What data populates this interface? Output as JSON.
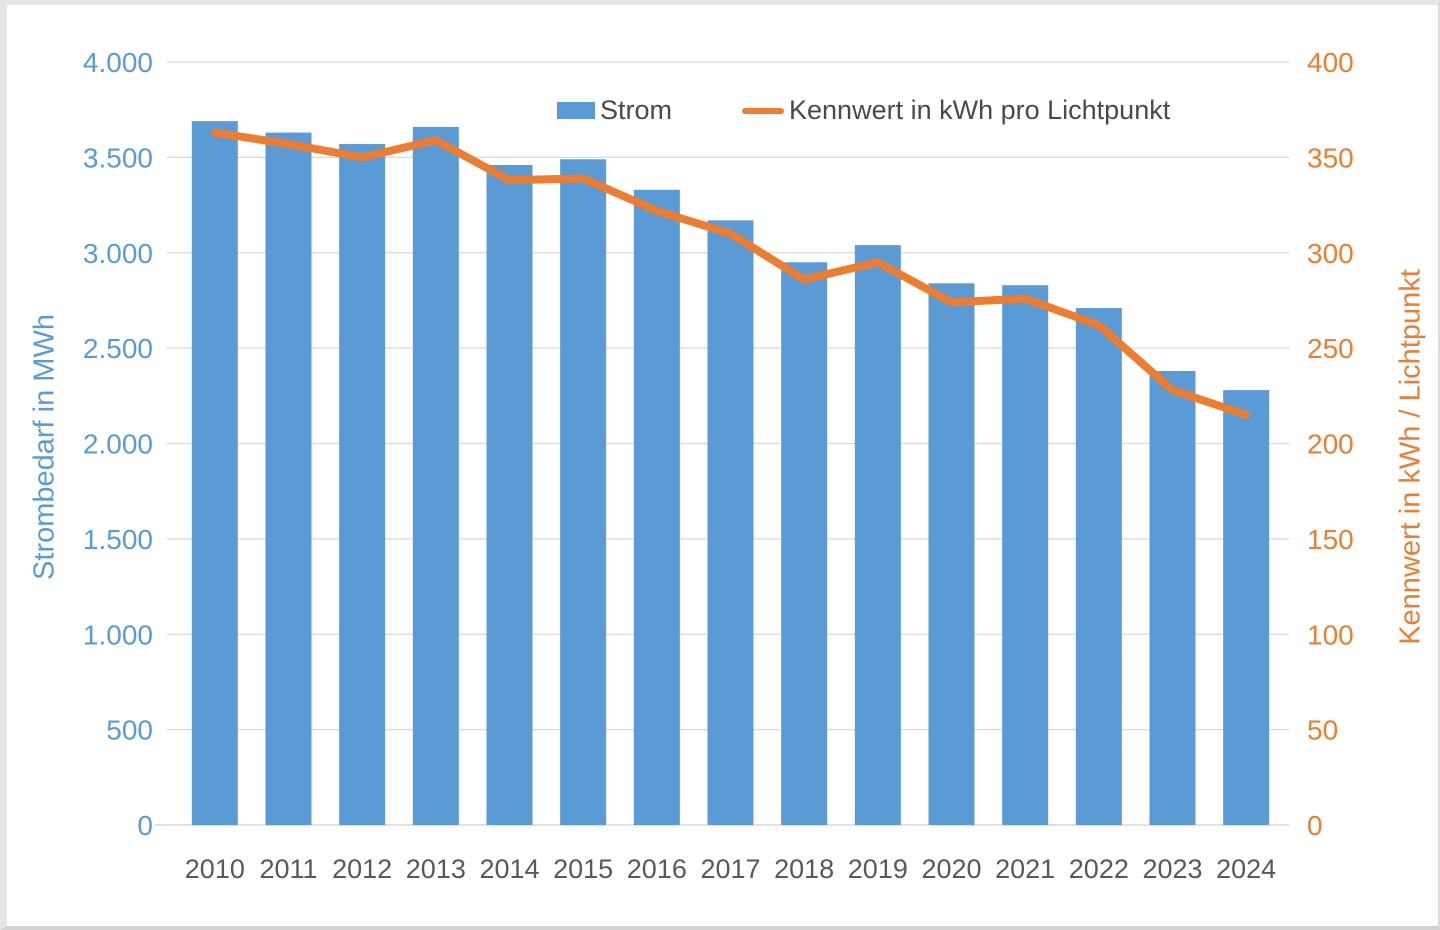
{
  "chart_data": {
    "type": "bar+line",
    "categories": [
      "2010",
      "2011",
      "2012",
      "2013",
      "2014",
      "2015",
      "2016",
      "2017",
      "2018",
      "2019",
      "2020",
      "2021",
      "2022",
      "2023",
      "2024"
    ],
    "series": [
      {
        "name": "Strom",
        "type": "bar",
        "axis": "left",
        "color": "#5B9BD5",
        "values": [
          3690,
          3630,
          3570,
          3660,
          3460,
          3490,
          3330,
          3170,
          2950,
          3040,
          2840,
          2830,
          2710,
          2380,
          2280
        ]
      },
      {
        "name": "Kennwert in kWh pro Lichtpunkt",
        "type": "line",
        "axis": "right",
        "color": "#ED7D31",
        "values": [
          363,
          357,
          350,
          359,
          338,
          339,
          322,
          310,
          286,
          295,
          274,
          276,
          262,
          228,
          215
        ]
      }
    ],
    "left_axis": {
      "title": "Strombedarf in MWh",
      "min": 0,
      "max": 4000,
      "step": 500,
      "color": "#5B9BD5",
      "tick_labels": [
        "0",
        "500",
        "1.000",
        "1.500",
        "2.000",
        "2.500",
        "3.000",
        "3.500",
        "4.000"
      ]
    },
    "right_axis": {
      "title": "Kennwert in kWh / Lichtpunkt",
      "min": 0,
      "max": 400,
      "step": 50,
      "color": "#ED7D31",
      "tick_labels": [
        "0",
        "50",
        "100",
        "150",
        "200",
        "250",
        "300",
        "350",
        "400"
      ]
    },
    "x_axis": {
      "label_color": "#595959"
    },
    "grid": {
      "on": true,
      "color": "#D9D9D9"
    },
    "legend_position": "top-center",
    "title": "",
    "xlabel": "",
    "ylabel": "Strombedarf in MWh",
    "y2label": "Kennwert in kWh / Lichtpunkt",
    "ylim": [
      0,
      4000
    ],
    "y2lim": [
      0,
      400
    ]
  }
}
